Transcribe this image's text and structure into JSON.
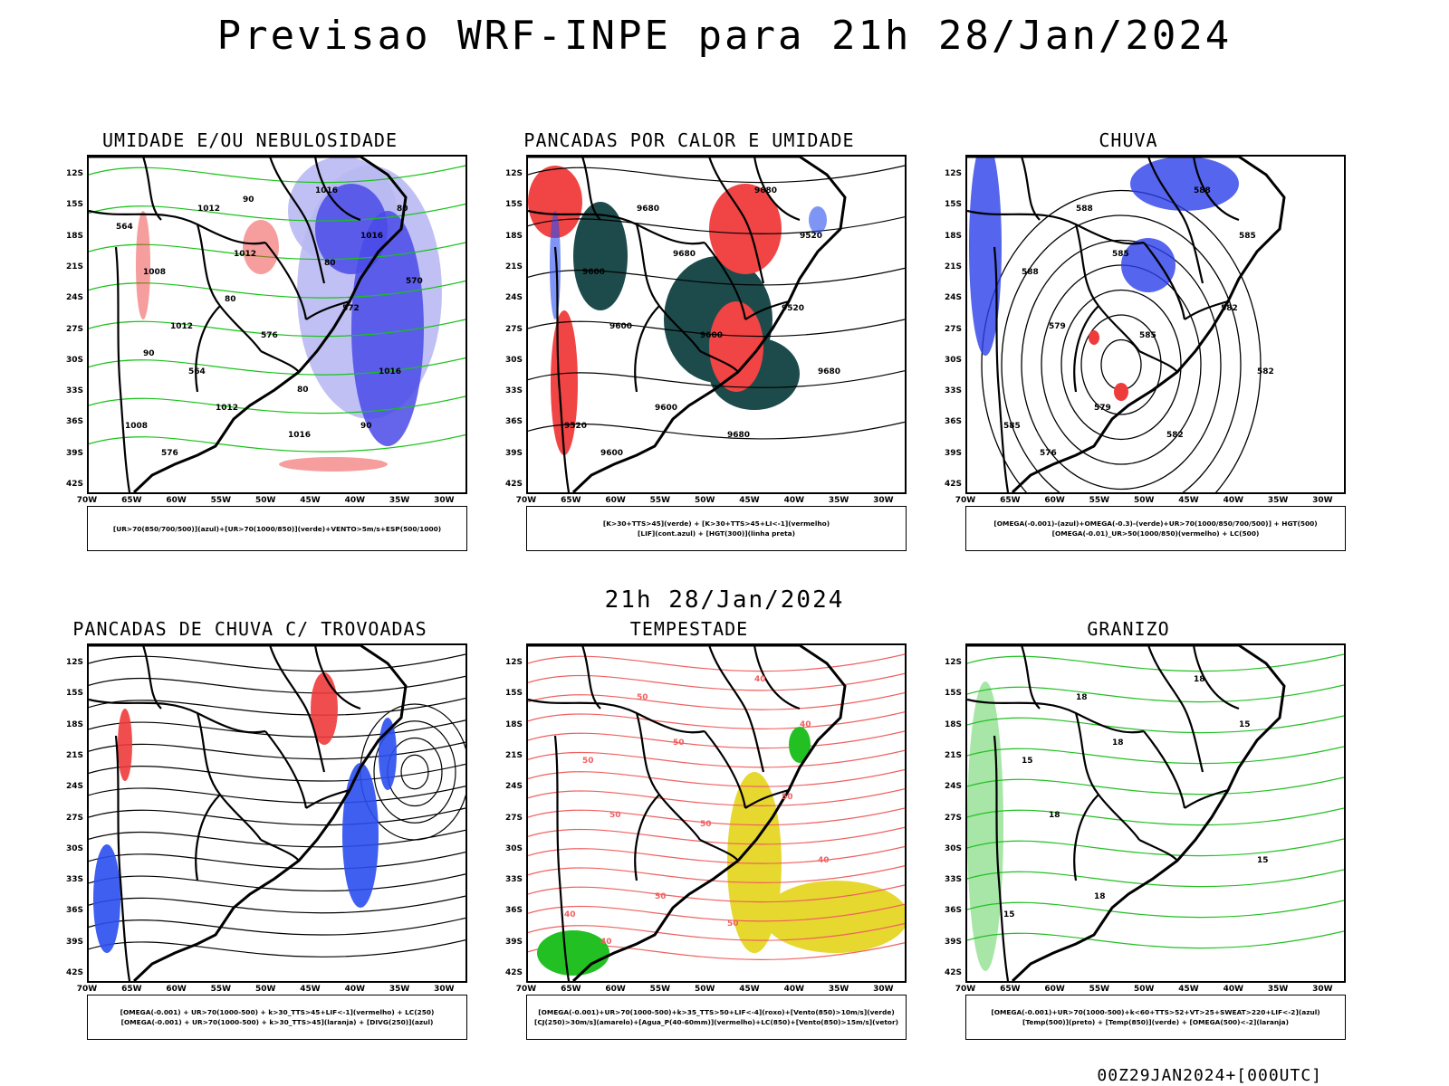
{
  "main_title": "Previsao WRF-INPE  para 21h 28/Jan/2024",
  "mid_title": "21h 28/Jan/2024",
  "footer": "00Z29JAN2024+[000UTC]",
  "lat_labels": [
    "12S",
    "15S",
    "18S",
    "21S",
    "24S",
    "27S",
    "30S",
    "33S",
    "36S",
    "39S",
    "42S"
  ],
  "lon_labels": [
    "70W",
    "65W",
    "60W",
    "55W",
    "50W",
    "45W",
    "40W",
    "35W",
    "30W"
  ],
  "panels": [
    {
      "title": "UMIDADE E/OU NEBULOSIDADE",
      "legend": [
        "[UR>70(850/700/500)](azul)+[UR>70(1000/850)](verde)+VENTO>5m/s+ESP(500/1000)"
      ],
      "labels": [
        "1012",
        "1016",
        "1012",
        "1008",
        "1016",
        "1012",
        "1016",
        "1012",
        "1008",
        "1016",
        "576",
        "572",
        "576",
        "570",
        "564",
        "564",
        "80",
        "90",
        "90",
        "80",
        "90",
        "80",
        "80"
      ],
      "colors": {
        "fill": "#4a4ae8",
        "fill2": "#b9b9f3",
        "green": "#17c317",
        "red": "#ee3b3b"
      }
    },
    {
      "title": "PANCADAS POR CALOR E UMIDADE",
      "legend": [
        "[K>30+TTS>45](verde) + [K>30+TTS>45+LI<-1](vermelho)",
        "[LIF](cont.azul) + [HGT(300)](linha preta)"
      ],
      "labels": [
        "9680",
        "9680",
        "9680",
        "9600",
        "9520",
        "9600",
        "9680",
        "9600",
        "9520",
        "9680",
        "9600",
        "9520",
        "9600"
      ],
      "colors": {
        "fill": "#1d4b4b",
        "red": "#f14444",
        "blue": "#2a4ef0"
      }
    },
    {
      "title": "CHUVA",
      "legend": [
        "[OMEGA(-0.001)-(azul)+OMEGA(-0.3)-(verde)+UR>70(1000/850/700/500)] + HGT(500)",
        "[OMEGA(-0.01)_UR>50(1000/850)(vermelho) + LC(500)"
      ],
      "labels": [
        "588",
        "588",
        "585",
        "588",
        "585",
        "579",
        "582",
        "579",
        "585",
        "582",
        "576",
        "582",
        "585"
      ],
      "colors": {
        "blue": "#2a3ee8",
        "red": "#ee3b3b"
      }
    },
    {
      "title": "PANCADAS DE CHUVA C/ TROVOADAS",
      "legend": [
        "[OMEGA(-0.001) + UR>70(1000-500) + k>30_TTS>45+LIF<-1](vermelho) + LC(250)",
        "[OMEGA(-0.001) + UR>70(1000-500) + k>30_TTS>45](laranja) + [DIVG(250)](azul)"
      ],
      "labels": [],
      "colors": {
        "blue": "#2a4ef0",
        "red": "#ee3b3b",
        "orange": "#ff8c00"
      }
    },
    {
      "title": "TEMPESTADE",
      "legend": [
        "[OMEGA(-0.001)+UR>70(1000-500)+k>35_TTS>50+LIF<-4](roxo)+[Vento(850)>10m/s](verde)",
        "[CJ(250)>30m/s](amarelo)+[Agua_P(40-60mm)](vermelho)+LC(850)+[Vento(850)>15m/s](vetor)"
      ],
      "labels": [
        "50",
        "40",
        "50",
        "50",
        "40",
        "50",
        "40",
        "50",
        "40",
        "50",
        "40",
        "50",
        "50"
      ],
      "colors": {
        "yellow": "#e6d82e",
        "red": "#f06060",
        "green": "#22c022"
      }
    },
    {
      "title": "GRANIZO",
      "legend": [
        "[OMEGA(-0.001)+UR>70(1000-500)+k<60+TTS>52+VT>25+SWEAT>220+LIF<-2](azul)",
        "[Temp(500)](preto) + [Temp(850)](verde) + [OMEGA(500)<-2](laranja)"
      ],
      "labels": [
        "18",
        "18",
        "18",
        "15",
        "15",
        "18",
        "15",
        "18",
        "15"
      ],
      "colors": {
        "green": "#22c022",
        "black": "#000000"
      }
    }
  ]
}
